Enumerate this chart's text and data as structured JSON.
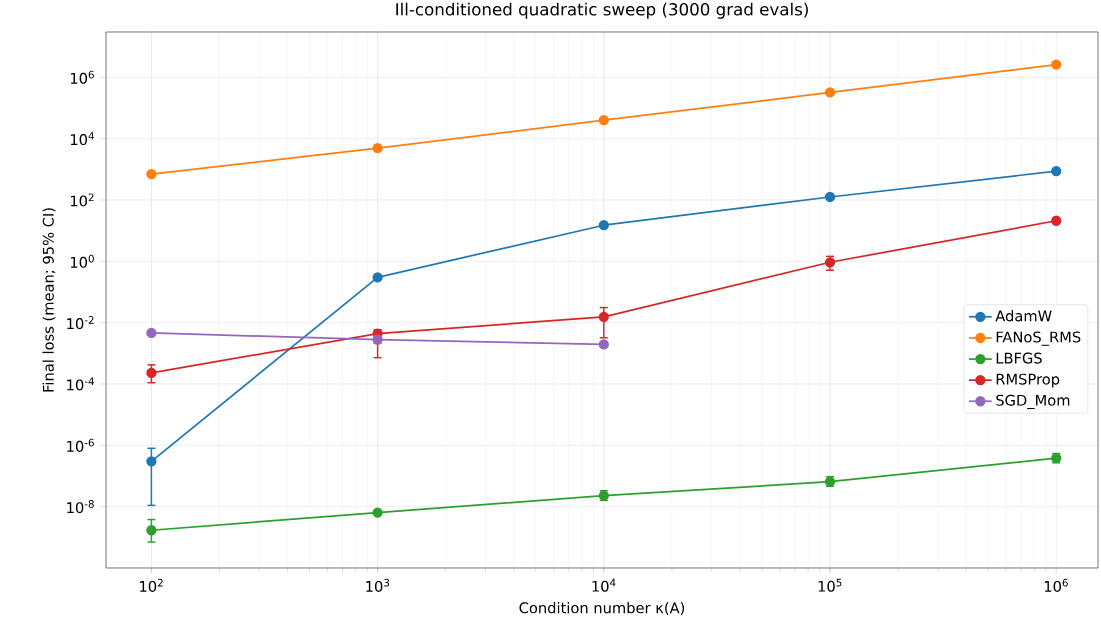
{
  "chart_data": {
    "type": "line",
    "title": "Ill-conditioned quadratic sweep (3000 grad evals)",
    "xlabel": "Condition number κ(A)",
    "ylabel": "Final loss (mean; 95% CI)",
    "log": "xy",
    "grid": true,
    "legend": "right",
    "marker": "circle",
    "line_style": "solid",
    "x": [
      100,
      1000,
      10000,
      100000,
      1000000
    ],
    "xlim": [
      63,
      1530000
    ],
    "ylim": [
      1e-10,
      30000000.0
    ],
    "xticks": [
      {
        "value": 100,
        "label": "10$^{2}$"
      },
      {
        "value": 1000,
        "label": "10$^{3}$"
      },
      {
        "value": 10000,
        "label": "10$^{4}$"
      },
      {
        "value": 100000,
        "label": "10$^{5}$"
      },
      {
        "value": 1000000,
        "label": "10$^{6}$"
      }
    ],
    "yticks": [
      {
        "value": 1e-08,
        "label": "10$^{-8}$"
      },
      {
        "value": 1e-06,
        "label": "10$^{-6}$"
      },
      {
        "value": 0.0001,
        "label": "10$^{-4}$"
      },
      {
        "value": 0.01,
        "label": "10$^{-2}$"
      },
      {
        "value": 1,
        "label": "10$^{0}$"
      },
      {
        "value": 100,
        "label": "10$^{2}$"
      },
      {
        "value": 10000,
        "label": "10$^{4}$"
      },
      {
        "value": 1000000,
        "label": "10$^{6}$"
      }
    ],
    "series": [
      {
        "name": "AdamW",
        "color": "#1f77b4",
        "values": [
          3e-07,
          0.3,
          15,
          125,
          870
        ],
        "errors": [
          [
            1.1e-08,
            8e-07
          ],
          null,
          null,
          null,
          null
        ]
      },
      {
        "name": "FANoS_RMS",
        "color": "#ff7f0e",
        "values": [
          700,
          4900,
          40000,
          320000,
          2600000
        ]
      },
      {
        "name": "LBFGS",
        "color": "#2ca02c",
        "values": [
          1.7e-09,
          6.4e-09,
          2.3e-08,
          6.5e-08,
          3.8e-07
        ],
        "errors": [
          [
            7e-10,
            3.8e-09
          ],
          null,
          [
            1.6e-08,
            3.3e-08
          ],
          [
            4.6e-08,
            9.5e-08
          ],
          [
            2.7e-07,
            5.4e-07
          ]
        ]
      },
      {
        "name": "RMSProp",
        "color": "#d62728",
        "values": [
          0.00023,
          0.0044,
          0.0155,
          0.93,
          21
        ],
        "errors": [
          [
            0.00011,
            0.00042
          ],
          [
            0.00072,
            0.0059
          ],
          [
            0.0032,
            0.031
          ],
          [
            0.51,
            1.45
          ],
          null
        ]
      },
      {
        "name": "SGD_Mom",
        "color": "#9467bd",
        "values": [
          0.0046,
          0.0028,
          0.00195,
          null,
          null
        ],
        "errors": [
          null,
          [
            0.0021,
            0.0037
          ],
          null,
          null,
          null
        ]
      }
    ]
  }
}
